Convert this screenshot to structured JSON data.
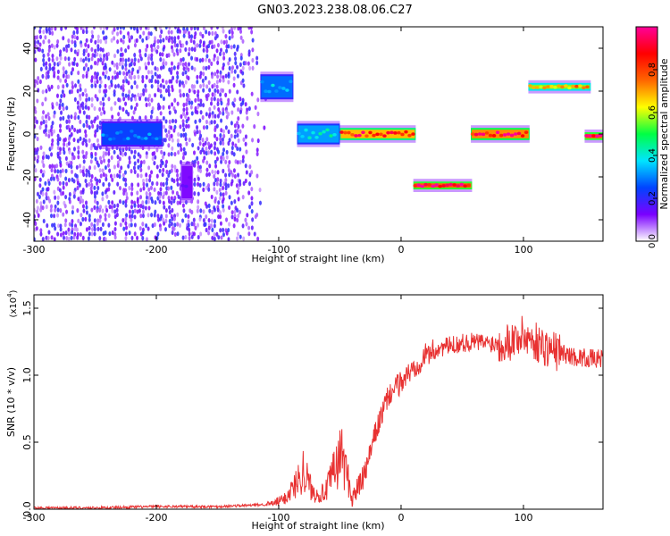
{
  "title": "GN03.2023.238.08.06.C27",
  "chart_data": [
    {
      "type": "heatmap",
      "xlabel": "Height of straight line (km)",
      "ylabel": "Frequency (Hz)",
      "xlim": [
        -300,
        165
      ],
      "ylim": [
        -50,
        50
      ],
      "xticks": [
        -300,
        -200,
        -100,
        0,
        100
      ],
      "yticks": [
        -40,
        -20,
        0,
        20,
        40
      ],
      "colorbar": {
        "label": "Normalized spectral amplitude",
        "range": [
          0,
          1
        ],
        "ticks": [
          "0.0",
          "0.2",
          "0.4",
          "0.6",
          "0.8"
        ],
        "colors": [
          "#ffffff",
          "#7a00ff",
          "#0044ff",
          "#00e5ff",
          "#00ff44",
          "#ffff00",
          "#ff6600",
          "#ff0000",
          "#ff0099"
        ]
      },
      "features": [
        {
          "name": "noise_field",
          "x": [
            -300,
            -110
          ],
          "freq": [
            -50,
            50
          ],
          "amplitude": 0.12
        },
        {
          "name": "patch",
          "x": [
            -245,
            -195
          ],
          "freq": [
            -5,
            5
          ],
          "amplitude": 0.3
        },
        {
          "name": "patch",
          "x": [
            -180,
            -170
          ],
          "freq": [
            -30,
            -15
          ],
          "amplitude": 0.15
        },
        {
          "name": "segment",
          "x": [
            -115,
            -88
          ],
          "freq": [
            17,
            27
          ],
          "amplitude": 0.35
        },
        {
          "name": "segment",
          "x": [
            -85,
            -50
          ],
          "freq": [
            -4,
            4
          ],
          "amplitude": 0.4
        },
        {
          "name": "segment",
          "x": [
            -50,
            12
          ],
          "freq": [
            -2,
            2
          ],
          "amplitude": 0.85
        },
        {
          "name": "segment",
          "x": [
            10,
            58
          ],
          "freq": [
            -25,
            -23
          ],
          "amplitude": 0.95
        },
        {
          "name": "segment",
          "x": [
            57,
            105
          ],
          "freq": [
            -2,
            2
          ],
          "amplitude": 0.9
        },
        {
          "name": "segment",
          "x": [
            104,
            155
          ],
          "freq": [
            21,
            23
          ],
          "amplitude": 0.7
        },
        {
          "name": "segment",
          "x": [
            150,
            165
          ],
          "freq": [
            -2,
            0
          ],
          "amplitude": 0.95
        }
      ]
    },
    {
      "type": "line",
      "xlabel": "Height of straight line (km)",
      "ylabel": "SNR (10 * v/v)",
      "scale_label": "(x10",
      "scale_exp": "4",
      "scale_close": ")",
      "xlim": [
        -300,
        165
      ],
      "ylim": [
        0,
        1.6
      ],
      "xticks": [
        -300,
        -200,
        -100,
        0,
        100
      ],
      "yticks": [
        "0.0",
        "0.5",
        "1.0",
        "1.5"
      ],
      "color": "#e83232",
      "x": [
        -300,
        -250,
        -200,
        -150,
        -120,
        -105,
        -95,
        -85,
        -80,
        -72,
        -62,
        -55,
        -48,
        -40,
        -30,
        -20,
        -10,
        0,
        10,
        20,
        30,
        40,
        50,
        60,
        70,
        80,
        90,
        100,
        110,
        120,
        130,
        140,
        150,
        160,
        165
      ],
      "y": [
        0.01,
        0.01,
        0.02,
        0.02,
        0.03,
        0.04,
        0.08,
        0.2,
        0.3,
        0.12,
        0.12,
        0.28,
        0.42,
        0.08,
        0.25,
        0.6,
        0.85,
        0.95,
        1.05,
        1.15,
        1.2,
        1.22,
        1.24,
        1.25,
        1.24,
        1.24,
        1.26,
        1.3,
        1.25,
        1.2,
        1.17,
        1.14,
        1.13,
        1.12,
        1.13
      ]
    }
  ]
}
